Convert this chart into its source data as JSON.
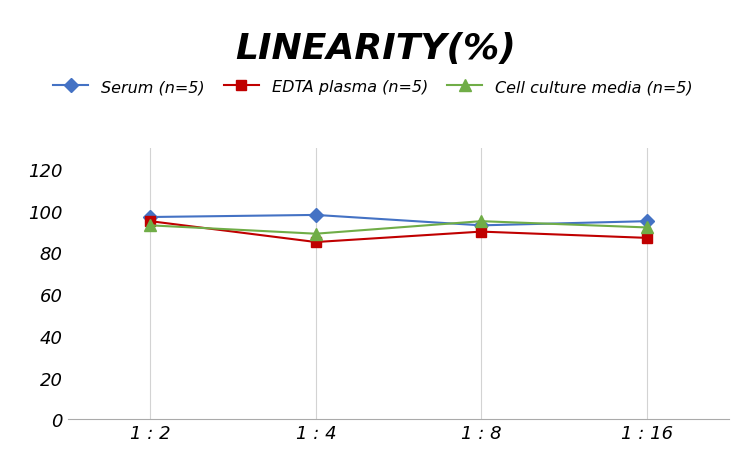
{
  "title": "LINEARITY(%)",
  "x_labels": [
    "1 : 2",
    "1 : 4",
    "1 : 8",
    "1 : 16"
  ],
  "x_positions": [
    0,
    1,
    2,
    3
  ],
  "series": [
    {
      "label": "Serum (n=5)",
      "values": [
        97,
        98,
        93,
        95
      ],
      "color": "#4472C4",
      "marker": "D",
      "marker_size": 7,
      "linewidth": 1.5
    },
    {
      "label": "EDTA plasma (n=5)",
      "values": [
        95,
        85,
        90,
        87
      ],
      "color": "#C00000",
      "marker": "s",
      "marker_size": 7,
      "linewidth": 1.5
    },
    {
      "label": "Cell culture media (n=5)",
      "values": [
        93,
        89,
        95,
        92
      ],
      "color": "#70AD47",
      "marker": "^",
      "marker_size": 8,
      "linewidth": 1.5
    }
  ],
  "ylim": [
    0,
    130
  ],
  "yticks": [
    0,
    20,
    40,
    60,
    80,
    100,
    120
  ],
  "background_color": "#FFFFFF",
  "grid_color": "#D3D3D3",
  "title_fontsize": 26,
  "legend_fontsize": 11.5,
  "tick_fontsize": 13
}
